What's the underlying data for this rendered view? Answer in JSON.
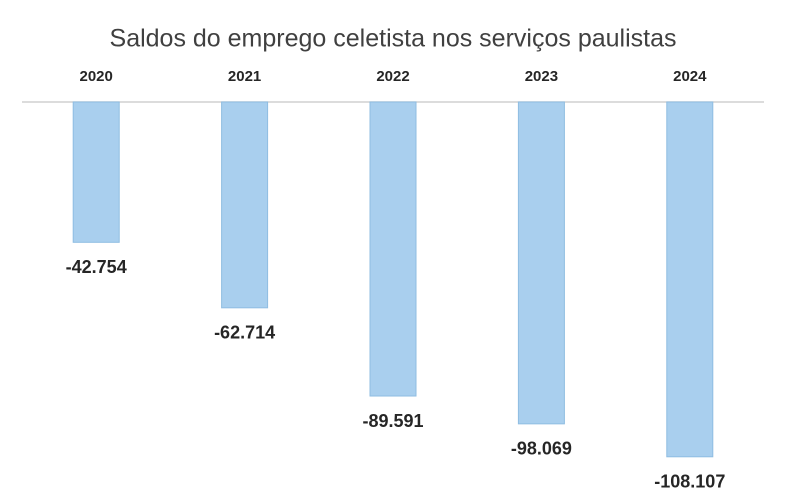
{
  "chart_data": {
    "type": "bar",
    "title": "Saldos do emprego celetista nos serviços paulistas",
    "categories": [
      "2020",
      "2021",
      "2022",
      "2023",
      "2024"
    ],
    "values": [
      -42754,
      -62714,
      -89591,
      -98069,
      -108107
    ],
    "value_labels": [
      "-42.754",
      "-62.714",
      "-89.591",
      "-98.069",
      "-108.107"
    ],
    "color": "#a9cfee",
    "ylim": [
      -110000,
      0
    ]
  }
}
